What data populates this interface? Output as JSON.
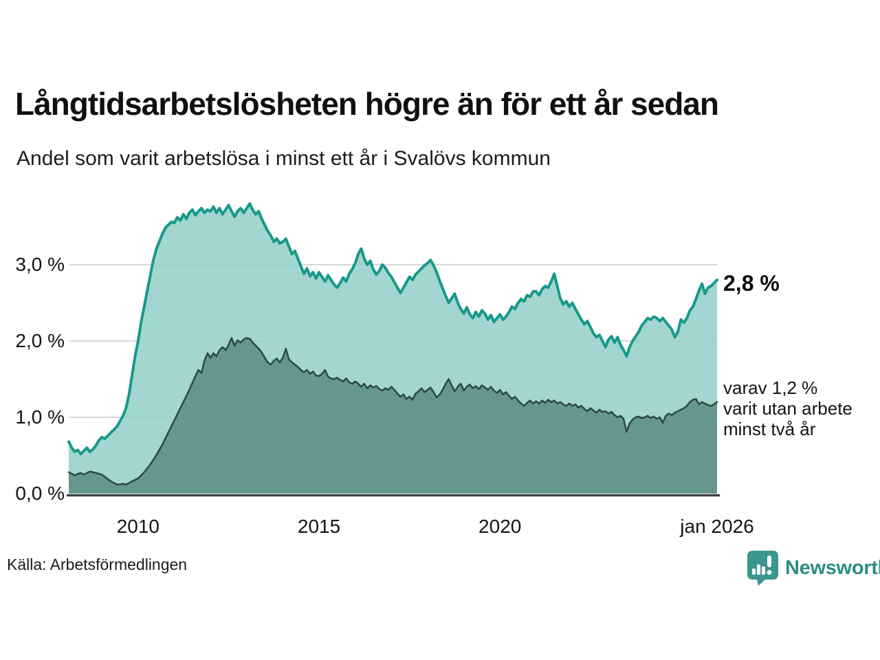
{
  "header": {
    "title": "Långtidsarbetslösheten högre än för ett år sedan",
    "subtitle": "Andel som varit arbetslösa i minst ett år i Svalövs kommun"
  },
  "chart_data": {
    "type": "area",
    "unit": "%",
    "frequency": "monthly",
    "x_start": "2008-02",
    "x_end": "2026-01",
    "grid": true,
    "ylim": [
      0,
      3.9
    ],
    "x_ticks": [
      {
        "label": "2010",
        "month_index": 23
      },
      {
        "label": "2015",
        "month_index": 83
      },
      {
        "label": "2020",
        "month_index": 143
      },
      {
        "label": "jan 2026",
        "month_index": 215
      }
    ],
    "y_ticks": [
      {
        "label": "0,0 %",
        "value": 0
      },
      {
        "label": "1,0 %",
        "value": 1
      },
      {
        "label": "2,0 %",
        "value": 2
      },
      {
        "label": "3,0 %",
        "value": 3
      }
    ],
    "series": [
      {
        "name": "Andel arbetslösa minst ett år",
        "end_value": 2.8,
        "end_label": "2,8 %",
        "line_color": "#17998a",
        "fill_color": "#96d0c9",
        "values": [
          0.68,
          0.6,
          0.55,
          0.57,
          0.52,
          0.56,
          0.6,
          0.55,
          0.58,
          0.63,
          0.7,
          0.74,
          0.72,
          0.76,
          0.8,
          0.84,
          0.88,
          0.95,
          1.02,
          1.12,
          1.3,
          1.55,
          1.8,
          2.0,
          2.25,
          2.45,
          2.65,
          2.85,
          3.05,
          3.2,
          3.3,
          3.4,
          3.48,
          3.52,
          3.56,
          3.55,
          3.62,
          3.58,
          3.66,
          3.6,
          3.68,
          3.72,
          3.65,
          3.7,
          3.74,
          3.68,
          3.72,
          3.7,
          3.76,
          3.68,
          3.74,
          3.66,
          3.72,
          3.78,
          3.7,
          3.63,
          3.7,
          3.74,
          3.68,
          3.74,
          3.8,
          3.72,
          3.66,
          3.7,
          3.6,
          3.52,
          3.44,
          3.38,
          3.3,
          3.34,
          3.28,
          3.3,
          3.34,
          3.24,
          3.14,
          3.18,
          3.08,
          2.98,
          2.88,
          2.95,
          2.85,
          2.9,
          2.82,
          2.9,
          2.84,
          2.78,
          2.86,
          2.8,
          2.74,
          2.7,
          2.76,
          2.83,
          2.78,
          2.88,
          2.94,
          3.02,
          3.14,
          3.21,
          3.08,
          3.0,
          3.05,
          2.94,
          2.87,
          2.92,
          3.0,
          2.96,
          2.89,
          2.84,
          2.77,
          2.7,
          2.63,
          2.7,
          2.77,
          2.84,
          2.8,
          2.87,
          2.91,
          2.95,
          2.99,
          3.02,
          3.06,
          2.99,
          2.9,
          2.79,
          2.69,
          2.59,
          2.5,
          2.56,
          2.62,
          2.5,
          2.42,
          2.36,
          2.44,
          2.35,
          2.3,
          2.38,
          2.32,
          2.4,
          2.36,
          2.28,
          2.34,
          2.25,
          2.3,
          2.35,
          2.28,
          2.32,
          2.38,
          2.45,
          2.42,
          2.5,
          2.55,
          2.52,
          2.6,
          2.58,
          2.65,
          2.65,
          2.6,
          2.68,
          2.72,
          2.7,
          2.78,
          2.88,
          2.72,
          2.56,
          2.48,
          2.52,
          2.45,
          2.5,
          2.42,
          2.35,
          2.28,
          2.22,
          2.26,
          2.18,
          2.1,
          2.05,
          2.08,
          2.0,
          1.92,
          2.02,
          2.06,
          1.98,
          2.05,
          1.95,
          1.88,
          1.8,
          1.92,
          2.0,
          2.06,
          2.12,
          2.2,
          2.25,
          2.3,
          2.28,
          2.32,
          2.3,
          2.26,
          2.3,
          2.25,
          2.2,
          2.15,
          2.05,
          2.12,
          2.28,
          2.24,
          2.3,
          2.4,
          2.45,
          2.55,
          2.66,
          2.75,
          2.62,
          2.7,
          2.72,
          2.76,
          2.8
        ]
      },
      {
        "name": "varav andel arbetslösa minst två år",
        "end_value": 1.2,
        "end_label": "varav 1,2 % varit utan arbete minst två år",
        "line_color": "#2d4b45",
        "fill_color": "#5f918a",
        "values": [
          0.28,
          0.26,
          0.24,
          0.26,
          0.27,
          0.25,
          0.27,
          0.29,
          0.28,
          0.27,
          0.26,
          0.25,
          0.22,
          0.19,
          0.16,
          0.14,
          0.12,
          0.12,
          0.13,
          0.12,
          0.14,
          0.16,
          0.18,
          0.2,
          0.24,
          0.28,
          0.33,
          0.38,
          0.44,
          0.5,
          0.57,
          0.64,
          0.72,
          0.8,
          0.88,
          0.96,
          1.04,
          1.12,
          1.2,
          1.28,
          1.36,
          1.45,
          1.54,
          1.62,
          1.58,
          1.74,
          1.84,
          1.78,
          1.84,
          1.8,
          1.88,
          1.92,
          1.88,
          1.95,
          2.04,
          1.94,
          2.01,
          1.98,
          2.02,
          2.04,
          2.03,
          1.98,
          1.94,
          1.9,
          1.85,
          1.78,
          1.72,
          1.69,
          1.74,
          1.77,
          1.72,
          1.78,
          1.9,
          1.76,
          1.72,
          1.69,
          1.66,
          1.62,
          1.59,
          1.62,
          1.57,
          1.6,
          1.55,
          1.54,
          1.57,
          1.62,
          1.53,
          1.51,
          1.5,
          1.52,
          1.49,
          1.47,
          1.51,
          1.46,
          1.44,
          1.47,
          1.44,
          1.4,
          1.44,
          1.38,
          1.42,
          1.39,
          1.41,
          1.37,
          1.35,
          1.38,
          1.36,
          1.4,
          1.36,
          1.31,
          1.27,
          1.3,
          1.24,
          1.27,
          1.23,
          1.31,
          1.34,
          1.38,
          1.33,
          1.36,
          1.39,
          1.33,
          1.26,
          1.3,
          1.36,
          1.44,
          1.5,
          1.42,
          1.34,
          1.4,
          1.44,
          1.35,
          1.4,
          1.43,
          1.38,
          1.41,
          1.37,
          1.42,
          1.39,
          1.36,
          1.4,
          1.35,
          1.32,
          1.36,
          1.3,
          1.33,
          1.28,
          1.24,
          1.27,
          1.22,
          1.18,
          1.15,
          1.19,
          1.22,
          1.18,
          1.21,
          1.18,
          1.22,
          1.19,
          1.23,
          1.2,
          1.22,
          1.18,
          1.2,
          1.17,
          1.15,
          1.18,
          1.15,
          1.17,
          1.13,
          1.15,
          1.11,
          1.08,
          1.12,
          1.09,
          1.06,
          1.1,
          1.07,
          1.08,
          1.05,
          1.07,
          1.03,
          1.0,
          1.02,
          0.98,
          0.81,
          0.92,
          0.97,
          1.0,
          1.01,
          0.99,
          1.0,
          1.02,
          0.99,
          1.01,
          0.98,
          1.0,
          0.93,
          1.02,
          1.05,
          1.03,
          1.06,
          1.08,
          1.1,
          1.12,
          1.15,
          1.2,
          1.23,
          1.24,
          1.17,
          1.2,
          1.18,
          1.16,
          1.15,
          1.17,
          1.2
        ]
      }
    ]
  },
  "annotations": {
    "upper": "2,8 %",
    "lower_line1": "varav 1,2 %",
    "lower_line2": "varit utan arbete",
    "lower_line3": "minst två år"
  },
  "footer": {
    "source": "Källa: Arbetsförmedlingen",
    "brand": "Newsworthy"
  },
  "colors": {
    "accent_teal": "#17998a",
    "fill_light": "#9fd4cd",
    "fill_dark": "#6f9d97",
    "line_dark": "#2d4b45",
    "grid": "#d7d7d7",
    "axis": "#3c4043",
    "brand_teal": "#2d8c85",
    "logo_teal": "#3a968e"
  }
}
